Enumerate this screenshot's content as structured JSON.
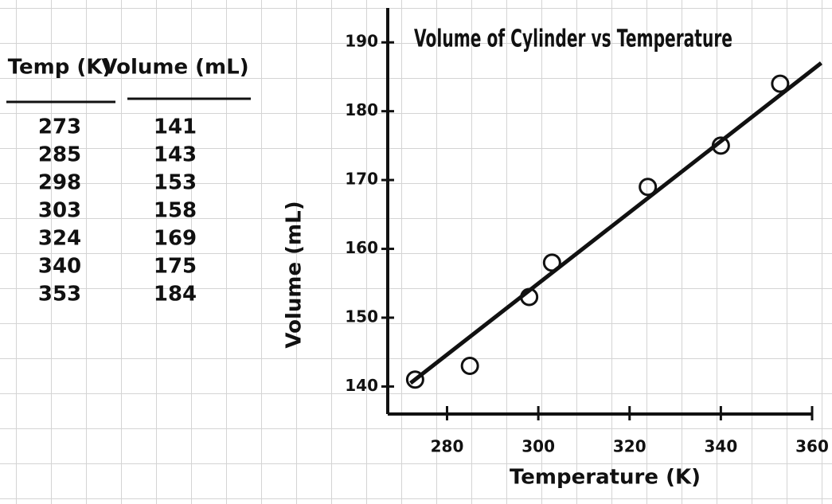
{
  "table": {
    "columns": [
      "Temp (K)",
      "Volume (mL)"
    ],
    "rows": [
      [
        273,
        141
      ],
      [
        285,
        143
      ],
      [
        298,
        153
      ],
      [
        303,
        158
      ],
      [
        324,
        169
      ],
      [
        340,
        175
      ],
      [
        353,
        184
      ]
    ]
  },
  "chart_data": {
    "type": "scatter",
    "title": "Volume of Cylinder vs Temperature",
    "x_label": "Temperature (K)",
    "y_label": "Volume (mL)",
    "x": [
      273,
      285,
      298,
      303,
      324,
      340,
      353
    ],
    "values": [
      141,
      143,
      153,
      158,
      169,
      175,
      184
    ],
    "color": "#111111",
    "trend_line": {
      "x": [
        272,
        362
      ],
      "values": [
        140.5,
        187
      ]
    },
    "xlim": [
      267,
      360
    ],
    "xticks": [
      280,
      300,
      320,
      340,
      360
    ],
    "ylim": [
      136,
      195
    ],
    "yticks": [
      140,
      150,
      160,
      170,
      180,
      190
    ],
    "grid": true
  }
}
